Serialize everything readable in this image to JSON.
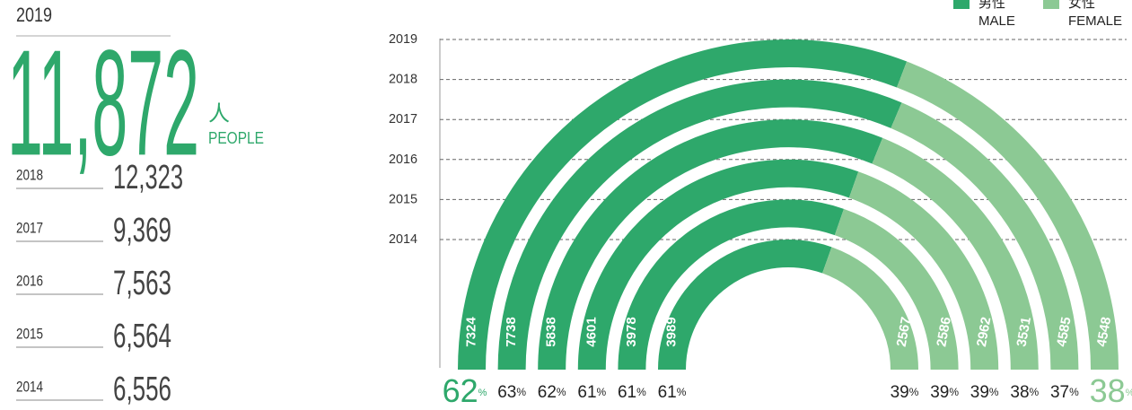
{
  "summary": {
    "year": "2019",
    "total": "11,872",
    "unit": "人",
    "unit_en": "PEOPLE",
    "history": [
      {
        "year": "2018",
        "total": "12,323"
      },
      {
        "year": "2017",
        "total": "9,369"
      },
      {
        "year": "2016",
        "total": "7,563"
      },
      {
        "year": "2015",
        "total": "6,564"
      },
      {
        "year": "2014",
        "total": "6,556"
      }
    ]
  },
  "chart_data": {
    "type": "semicircle_rings",
    "categories": [
      "2019",
      "2018",
      "2017",
      "2016",
      "2015",
      "2014"
    ],
    "series": [
      {
        "name": "男性",
        "name_en": "MALE",
        "color": "#2ea86b",
        "values": [
          7324,
          7738,
          5838,
          4601,
          3978,
          3989
        ],
        "percent": [
          62,
          63,
          62,
          61,
          61,
          61
        ]
      },
      {
        "name": "女性",
        "name_en": "FEMALE",
        "color": "#8cc994",
        "values": [
          4548,
          4585,
          3531,
          2962,
          2586,
          2567
        ],
        "percent": [
          38,
          37,
          38,
          39,
          39,
          39
        ]
      }
    ],
    "percent_unit": "%",
    "grid": true
  }
}
